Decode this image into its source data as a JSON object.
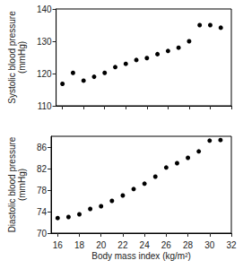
{
  "chart_data": [
    {
      "type": "scatter",
      "ylabel": "Systolic blood pressure (mmHg)",
      "x": [
        16,
        17,
        18,
        19,
        20,
        21,
        22,
        23,
        24,
        25,
        26,
        27,
        28,
        29,
        30,
        31
      ],
      "values": [
        116.8,
        120.2,
        117.8,
        119,
        120.2,
        122,
        123,
        124.2,
        124.8,
        126,
        127,
        128,
        130,
        135,
        135,
        134.2
      ],
      "color": "#000000",
      "marker": "circle",
      "xlim": [
        15.4,
        32
      ],
      "xticks": [
        16,
        18,
        20,
        22,
        24,
        26,
        28,
        30,
        32
      ],
      "ylim": [
        110,
        140
      ],
      "yticks": [
        110,
        120,
        130,
        140
      ],
      "tick_labels": "y",
      "grid": false
    },
    {
      "type": "scatter",
      "xlabel": "Body mass index (kg/m²)",
      "ylabel": "Diastolic blood pressure (mmHg)",
      "x": [
        16,
        17,
        18,
        19,
        20,
        21,
        22,
        23,
        24,
        25,
        26,
        27,
        28,
        29,
        30,
        31
      ],
      "values": [
        72.8,
        73,
        73.5,
        74.5,
        75,
        76,
        77,
        78.2,
        79.2,
        80.5,
        82.2,
        83,
        84,
        85.2,
        87.2,
        87.3
      ],
      "color": "#000000",
      "marker": "circle",
      "xlim": [
        15.4,
        32
      ],
      "xticks": [
        16,
        18,
        20,
        22,
        24,
        26,
        28,
        30,
        32
      ],
      "ylim": [
        70,
        88
      ],
      "yticks": [
        70,
        74,
        78,
        82,
        86
      ],
      "grid": false
    }
  ]
}
